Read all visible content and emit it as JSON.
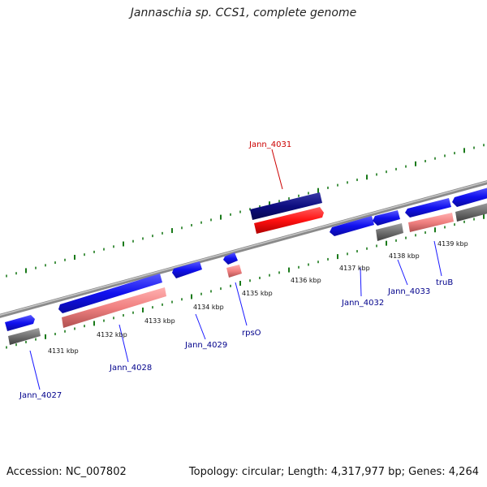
{
  "title": "Jannaschia sp. CCS1, complete genome",
  "footer": {
    "accession": "Accession: NC_007802",
    "summary": "Topology: circular; Length: 4,317,977 bp; Genes: 4,264"
  },
  "colors": {
    "gene_forward": "#1010ee",
    "gene_forward_dark": "#0d0d80",
    "gene_highlight": "#ff1010",
    "cds_pink": "#f08080",
    "cds_gray": "#707070",
    "backbone": "#9a9a9a",
    "tick_green": "#1a7a1a",
    "label_blue": "#00008b",
    "label_red": "#cc0000"
  },
  "ticks": [
    {
      "kbp": 4131,
      "label": "4131 kbp"
    },
    {
      "kbp": 4132,
      "label": "4132 kbp"
    },
    {
      "kbp": 4133,
      "label": "4133 kbp"
    },
    {
      "kbp": 4134,
      "label": "4134 kbp"
    },
    {
      "kbp": 4135,
      "label": "4135 kbp"
    },
    {
      "kbp": 4136,
      "label": "4136 kbp"
    },
    {
      "kbp": 4137,
      "label": "4137 kbp"
    },
    {
      "kbp": 4138,
      "label": "4138 kbp"
    },
    {
      "kbp": 4139,
      "label": "4139 kbp"
    }
  ],
  "genes": [
    {
      "name": "Jann_4027",
      "highlight": false
    },
    {
      "name": "Jann_4028",
      "highlight": false
    },
    {
      "name": "Jann_4029",
      "highlight": false
    },
    {
      "name": "rpsO",
      "highlight": false
    },
    {
      "name": "Jann_4031",
      "highlight": true
    },
    {
      "name": "Jann_4032",
      "highlight": false
    },
    {
      "name": "Jann_4033",
      "highlight": false
    },
    {
      "name": "truB",
      "highlight": false
    }
  ]
}
